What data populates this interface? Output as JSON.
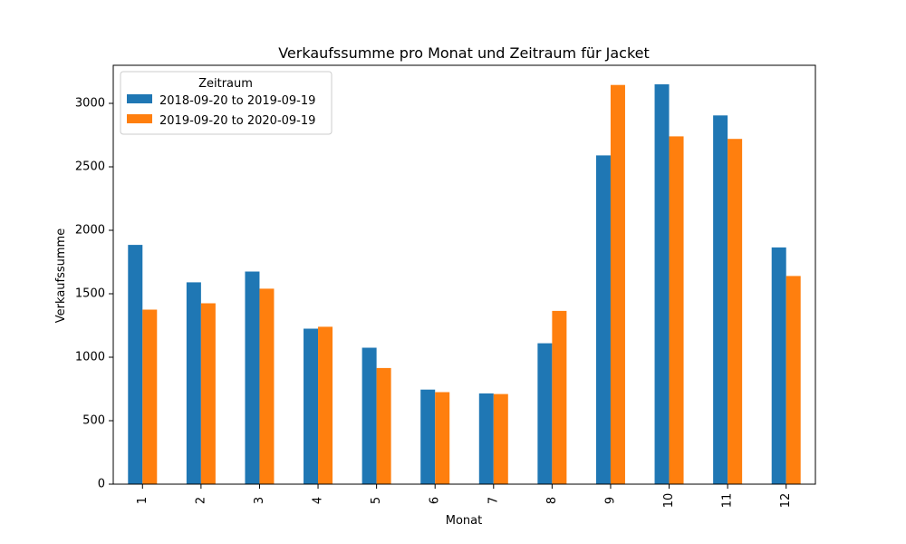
{
  "chart_data": {
    "type": "bar",
    "title": "Verkaufssumme pro Monat und Zeitraum für Jacket",
    "xlabel": "Monat",
    "ylabel": "Verkaufssumme",
    "categories": [
      "1",
      "2",
      "3",
      "4",
      "5",
      "6",
      "7",
      "8",
      "9",
      "10",
      "11",
      "12"
    ],
    "series": [
      {
        "name": "2018-09-20 to 2019-09-19",
        "color": "#1f77b4",
        "values": [
          1885,
          1590,
          1675,
          1225,
          1075,
          745,
          715,
          1110,
          2590,
          3150,
          2905,
          1865
        ]
      },
      {
        "name": "2019-09-20 to 2020-09-19",
        "color": "#ff7f0e",
        "values": [
          1375,
          1425,
          1540,
          1240,
          915,
          725,
          710,
          1365,
          3145,
          2740,
          2720,
          1640
        ]
      }
    ],
    "ylim": [
      0,
      3300
    ],
    "yticks": [
      0,
      500,
      1000,
      1500,
      2000,
      2500,
      3000
    ],
    "legend": {
      "title": "Zeitraum",
      "placement": "top-left"
    },
    "grid": false
  }
}
